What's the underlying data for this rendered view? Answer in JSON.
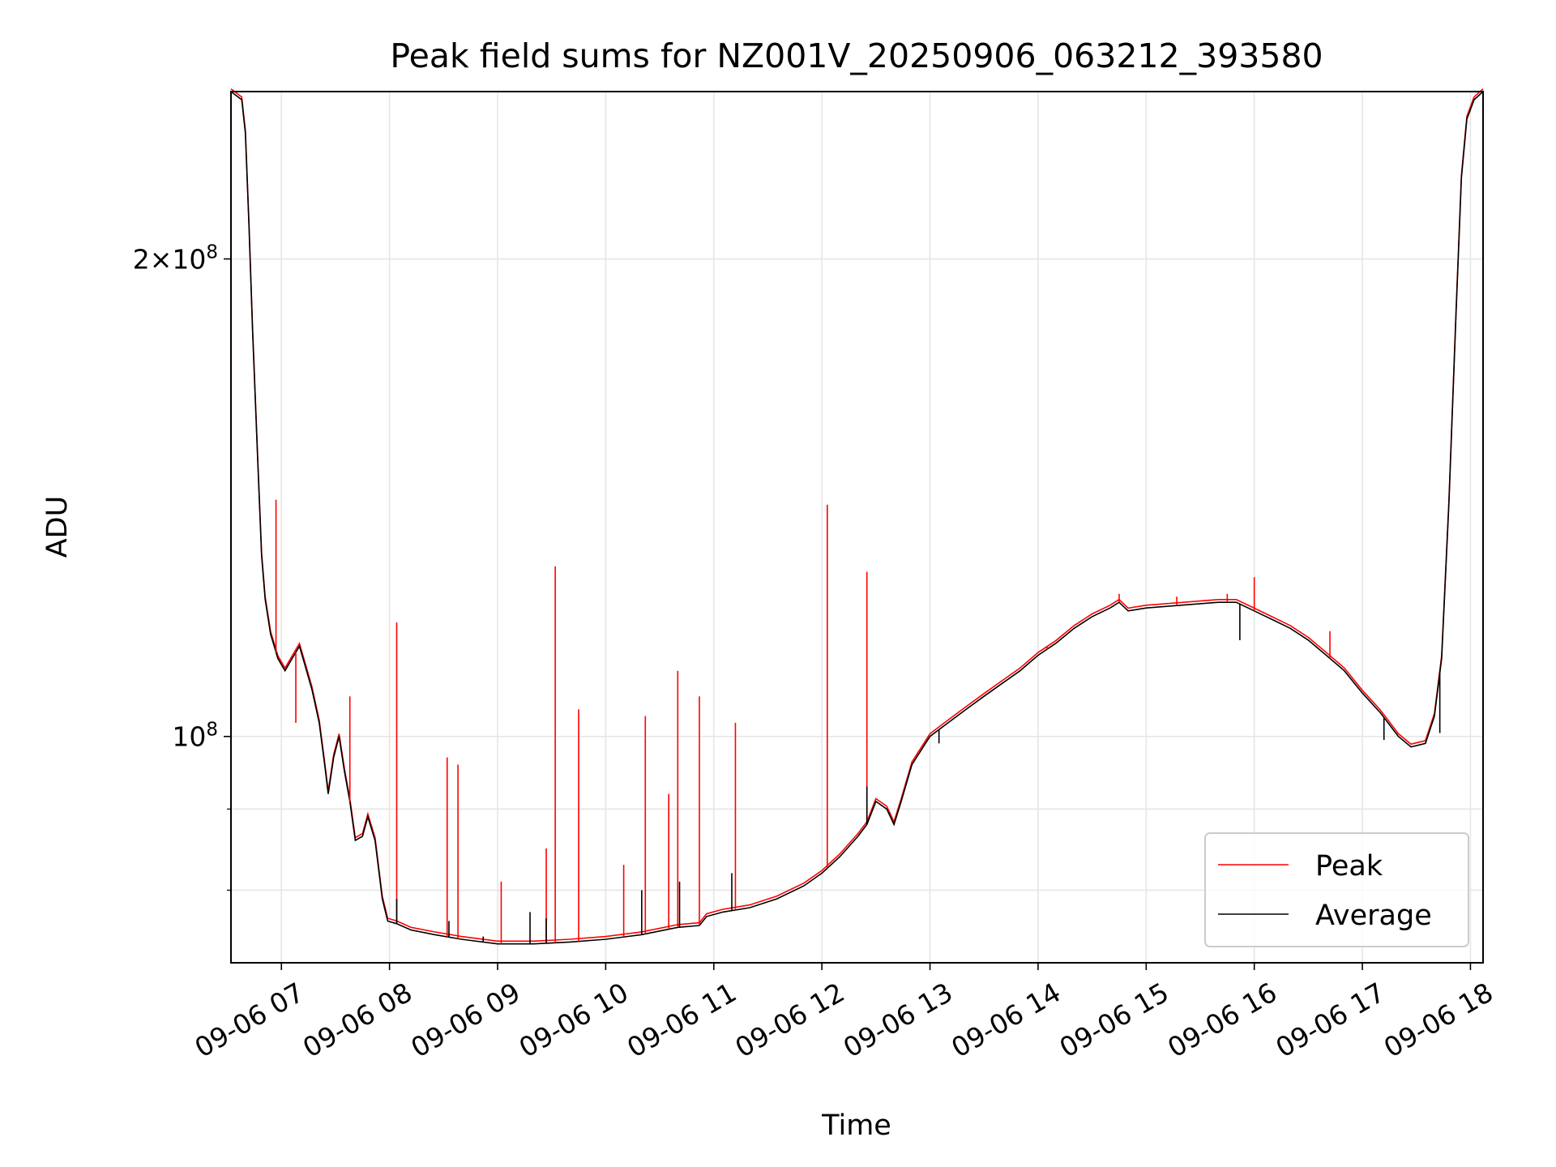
{
  "chart_data": {
    "type": "line",
    "title": "Peak field sums for NZ001V_20250906_063212_393580",
    "xlabel": "Time",
    "ylabel": "ADU",
    "yscale": "log",
    "grid": true,
    "legend_position": "lower-right",
    "xlim": [
      "2025-09-06 06:32",
      "2025-09-06 18:07"
    ],
    "ylim": [
      72000000,
      255000000
    ],
    "x_ticks": [
      {
        "t": "2025-09-06 07:00",
        "label": "09-06 07"
      },
      {
        "t": "2025-09-06 08:00",
        "label": "09-06 08"
      },
      {
        "t": "2025-09-06 09:00",
        "label": "09-06 09"
      },
      {
        "t": "2025-09-06 10:00",
        "label": "09-06 10"
      },
      {
        "t": "2025-09-06 11:00",
        "label": "09-06 11"
      },
      {
        "t": "2025-09-06 12:00",
        "label": "09-06 12"
      },
      {
        "t": "2025-09-06 13:00",
        "label": "09-06 13"
      },
      {
        "t": "2025-09-06 14:00",
        "label": "09-06 14"
      },
      {
        "t": "2025-09-06 15:00",
        "label": "09-06 15"
      },
      {
        "t": "2025-09-06 16:00",
        "label": "09-06 16"
      },
      {
        "t": "2025-09-06 17:00",
        "label": "09-06 17"
      },
      {
        "t": "2025-09-06 18:00",
        "label": "09-06 18"
      }
    ],
    "y_major_ticks": [
      {
        "value": 100000000,
        "base": "10",
        "exp": "8",
        "mantissa": ""
      },
      {
        "value": 200000000,
        "base": "10",
        "exp": "8",
        "mantissa": "2"
      }
    ],
    "y_minor_ticks": [
      80000000,
      90000000
    ],
    "series": [
      {
        "name": "Average",
        "color": "#000000",
        "points": [
          [
            "2025-09-06 06:32",
            255000000
          ],
          [
            "2025-09-06 06:38",
            252000000
          ],
          [
            "2025-09-06 06:40",
            240000000
          ],
          [
            "2025-09-06 06:42",
            210000000
          ],
          [
            "2025-09-06 06:44",
            180000000
          ],
          [
            "2025-09-06 06:47",
            148000000
          ],
          [
            "2025-09-06 06:49",
            130000000
          ],
          [
            "2025-09-06 06:51",
            122000000
          ],
          [
            "2025-09-06 06:54",
            116000000
          ],
          [
            "2025-09-06 06:56",
            114000000
          ],
          [
            "2025-09-06 06:58",
            112000000
          ],
          [
            "2025-09-06 07:02",
            110000000
          ],
          [
            "2025-09-06 07:06",
            112000000
          ],
          [
            "2025-09-06 07:10",
            114000000
          ],
          [
            "2025-09-06 07:13",
            111000000
          ],
          [
            "2025-09-06 07:17",
            107000000
          ],
          [
            "2025-09-06 07:21",
            102000000
          ],
          [
            "2025-09-06 07:24",
            96000000
          ],
          [
            "2025-09-06 07:26",
            92000000
          ],
          [
            "2025-09-06 07:29",
            97000000
          ],
          [
            "2025-09-06 07:32",
            100000000
          ],
          [
            "2025-09-06 07:35",
            95000000
          ],
          [
            "2025-09-06 07:38",
            91000000
          ],
          [
            "2025-09-06 07:41",
            86000000
          ],
          [
            "2025-09-06 07:45",
            86500000
          ],
          [
            "2025-09-06 07:48",
            89000000
          ],
          [
            "2025-09-06 07:52",
            86000000
          ],
          [
            "2025-09-06 07:56",
            79000000
          ],
          [
            "2025-09-06 07:59",
            76500000
          ],
          [
            "2025-09-06 08:04",
            76200000
          ],
          [
            "2025-09-06 08:12",
            75500000
          ],
          [
            "2025-09-06 08:25",
            75000000
          ],
          [
            "2025-09-06 08:40",
            74500000
          ],
          [
            "2025-09-06 09:00",
            74000000
          ],
          [
            "2025-09-06 09:20",
            74000000
          ],
          [
            "2025-09-06 09:40",
            74200000
          ],
          [
            "2025-09-06 10:00",
            74500000
          ],
          [
            "2025-09-06 10:20",
            75000000
          ],
          [
            "2025-09-06 10:40",
            75800000
          ],
          [
            "2025-09-06 10:52",
            76000000
          ],
          [
            "2025-09-06 10:56",
            77000000
          ],
          [
            "2025-09-06 11:05",
            77500000
          ],
          [
            "2025-09-06 11:20",
            78000000
          ],
          [
            "2025-09-06 11:35",
            79000000
          ],
          [
            "2025-09-06 11:50",
            80500000
          ],
          [
            "2025-09-06 12:00",
            82000000
          ],
          [
            "2025-09-06 12:10",
            84000000
          ],
          [
            "2025-09-06 12:20",
            86500000
          ],
          [
            "2025-09-06 12:25",
            88000000
          ],
          [
            "2025-09-06 12:30",
            91000000
          ],
          [
            "2025-09-06 12:36",
            90000000
          ],
          [
            "2025-09-06 12:40",
            88000000
          ],
          [
            "2025-09-06 12:44",
            91000000
          ],
          [
            "2025-09-06 12:50",
            96000000
          ],
          [
            "2025-09-06 13:00",
            100000000
          ],
          [
            "2025-09-06 13:10",
            102000000
          ],
          [
            "2025-09-06 13:20",
            104000000
          ],
          [
            "2025-09-06 13:30",
            106000000
          ],
          [
            "2025-09-06 13:40",
            108000000
          ],
          [
            "2025-09-06 13:50",
            110000000
          ],
          [
            "2025-09-06 14:00",
            112500000
          ],
          [
            "2025-09-06 14:10",
            114500000
          ],
          [
            "2025-09-06 14:20",
            117000000
          ],
          [
            "2025-09-06 14:30",
            119000000
          ],
          [
            "2025-09-06 14:40",
            120500000
          ],
          [
            "2025-09-06 14:45",
            121500000
          ],
          [
            "2025-09-06 14:50",
            120000000
          ],
          [
            "2025-09-06 15:00",
            120500000
          ],
          [
            "2025-09-06 15:20",
            121000000
          ],
          [
            "2025-09-06 15:40",
            121500000
          ],
          [
            "2025-09-06 15:50",
            121500000
          ],
          [
            "2025-09-06 16:00",
            120000000
          ],
          [
            "2025-09-06 16:10",
            118500000
          ],
          [
            "2025-09-06 16:20",
            117000000
          ],
          [
            "2025-09-06 16:30",
            115000000
          ],
          [
            "2025-09-06 16:40",
            112500000
          ],
          [
            "2025-09-06 16:50",
            110000000
          ],
          [
            "2025-09-06 17:00",
            106500000
          ],
          [
            "2025-09-06 17:10",
            103500000
          ],
          [
            "2025-09-06 17:20",
            100000000
          ],
          [
            "2025-09-06 17:27",
            98500000
          ],
          [
            "2025-09-06 17:35",
            99000000
          ],
          [
            "2025-09-06 17:40",
            103000000
          ],
          [
            "2025-09-06 17:44",
            112000000
          ],
          [
            "2025-09-06 17:48",
            140000000
          ],
          [
            "2025-09-06 17:52",
            185000000
          ],
          [
            "2025-09-06 17:55",
            225000000
          ],
          [
            "2025-09-06 17:58",
            245000000
          ],
          [
            "2025-09-06 18:02",
            252000000
          ],
          [
            "2025-09-06 18:07",
            255000000
          ]
        ],
        "spikes": [
          [
            "2025-09-06 08:04",
            79000000
          ],
          [
            "2025-09-06 08:33",
            76500000
          ],
          [
            "2025-09-06 08:52",
            74800000
          ],
          [
            "2025-09-06 09:18",
            77500000
          ],
          [
            "2025-09-06 09:27",
            76800000
          ],
          [
            "2025-09-06 10:20",
            80000000
          ],
          [
            "2025-09-06 10:41",
            81000000
          ],
          [
            "2025-09-06 11:10",
            82000000
          ],
          [
            "2025-09-06 12:25",
            93000000
          ],
          [
            "2025-09-06 13:05",
            99000000
          ],
          [
            "2025-09-06 15:52",
            115000000
          ],
          [
            "2025-09-06 17:12",
            99500000
          ],
          [
            "2025-09-06 17:43",
            100500000
          ]
        ]
      },
      {
        "name": "Peak",
        "color": "#ff0000",
        "spikes": [
          [
            "2025-09-06 06:57",
            141000000
          ],
          [
            "2025-09-06 07:08",
            102000000
          ],
          [
            "2025-09-06 07:38",
            106000000
          ],
          [
            "2025-09-06 08:04",
            118000000
          ],
          [
            "2025-09-06 08:32",
            97000000
          ],
          [
            "2025-09-06 08:38",
            96000000
          ],
          [
            "2025-09-06 09:02",
            81000000
          ],
          [
            "2025-09-06 09:27",
            85000000
          ],
          [
            "2025-09-06 09:32",
            128000000
          ],
          [
            "2025-09-06 09:45",
            104000000
          ],
          [
            "2025-09-06 10:10",
            83000000
          ],
          [
            "2025-09-06 10:22",
            103000000
          ],
          [
            "2025-09-06 10:35",
            92000000
          ],
          [
            "2025-09-06 10:40",
            110000000
          ],
          [
            "2025-09-06 10:52",
            106000000
          ],
          [
            "2025-09-06 11:12",
            102000000
          ],
          [
            "2025-09-06 12:03",
            140000000
          ],
          [
            "2025-09-06 12:25",
            127000000
          ],
          [
            "2025-09-06 14:05",
            114000000
          ],
          [
            "2025-09-06 14:45",
            123000000
          ],
          [
            "2025-09-06 15:17",
            122500000
          ],
          [
            "2025-09-06 15:45",
            123000000
          ],
          [
            "2025-09-06 16:00",
            126000000
          ],
          [
            "2025-09-06 16:42",
            116500000
          ]
        ]
      }
    ]
  }
}
